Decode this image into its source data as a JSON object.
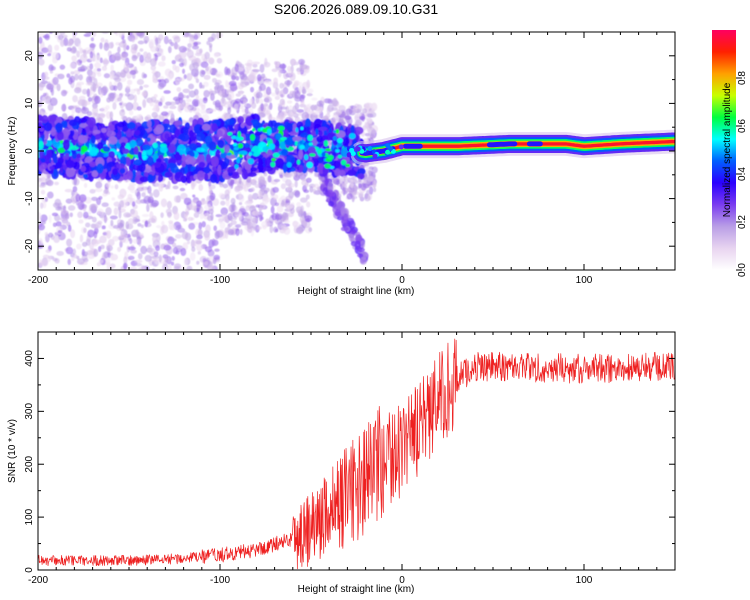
{
  "title": "S206.2026.089.09.10.G31",
  "chart_data": [
    {
      "type": "heatmap",
      "name": "spectrogram",
      "xlabel": "Height of straight line (km)",
      "ylabel": "Frequency (Hz)",
      "xlim": [
        -200,
        150
      ],
      "ylim": [
        -25,
        25
      ],
      "xticks": [
        -200,
        -100,
        0,
        100
      ],
      "yticks": [
        -20,
        -10,
        0,
        10,
        20
      ],
      "colorbar": {
        "label": "Normalized spectral amplitude",
        "range": [
          0,
          1
        ],
        "ticks": [
          "0.0",
          "0.2",
          "0.4",
          "0.6",
          "0.8"
        ],
        "tick_values": [
          0.0,
          0.2,
          0.4,
          0.6,
          0.8
        ],
        "colors": [
          "#ffffff",
          "#e8d4f0",
          "#b99ee6",
          "#7a3cf0",
          "#2a00ff",
          "#0060ff",
          "#00ffff",
          "#00ff40",
          "#c8ff00",
          "#ffa000",
          "#ff2000",
          "#ff0060"
        ]
      },
      "ridge": {
        "description_points_x": [
          -200,
          -150,
          -100,
          -80,
          -50,
          -30,
          -20,
          -10,
          0,
          10,
          30,
          60,
          90,
          100,
          120,
          150
        ],
        "description_points_y": [
          1,
          0,
          0,
          1,
          1,
          0,
          -0.5,
          0,
          1,
          1,
          1,
          1.5,
          1.5,
          1,
          1.5,
          2
        ]
      }
    },
    {
      "type": "line",
      "name": "snr",
      "xlabel": "Height of straight line (km)",
      "ylabel": "SNR (10 * v/v)",
      "xlim": [
        -200,
        150
      ],
      "ylim": [
        0,
        450
      ],
      "xticks": [
        -200,
        -100,
        0,
        100
      ],
      "yticks": [
        0,
        100,
        200,
        300,
        400
      ],
      "color": "#ee2020",
      "trend_x": [
        -200,
        -150,
        -120,
        -100,
        -80,
        -60,
        -50,
        -40,
        -30,
        -20,
        -10,
        0,
        10,
        20,
        30,
        40,
        60,
        100,
        150
      ],
      "trend_y": [
        18,
        18,
        22,
        28,
        38,
        60,
        80,
        110,
        140,
        170,
        200,
        230,
        270,
        320,
        360,
        385,
        385,
        380,
        385
      ]
    }
  ]
}
